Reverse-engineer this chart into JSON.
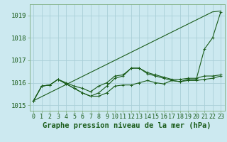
{
  "title": "Graphe pression niveau de la mer (hPa)",
  "xlabel_ticks": [
    0,
    1,
    2,
    3,
    4,
    5,
    6,
    7,
    8,
    9,
    10,
    11,
    12,
    13,
    14,
    15,
    16,
    17,
    18,
    19,
    20,
    21,
    22,
    23
  ],
  "ylim": [
    1014.75,
    1019.5
  ],
  "yticks": [
    1015,
    1016,
    1017,
    1018,
    1019
  ],
  "xlim": [
    -0.5,
    23.5
  ],
  "bg_color": "#cce9f0",
  "grid_color": "#aacfd8",
  "line_color": "#1a5c1a",
  "title_fontsize": 7.5,
  "tick_fontsize": 6,
  "series_main": [
    1015.2,
    1015.85,
    1015.9,
    1016.15,
    1015.95,
    1015.75,
    1015.55,
    1015.4,
    1015.55,
    1015.85,
    1016.2,
    1016.3,
    1016.65,
    1016.65,
    1016.4,
    1016.3,
    1016.2,
    1016.1,
    1016.05,
    1016.15,
    1016.15,
    1017.5,
    1018.0,
    1019.15
  ],
  "series_lower": [
    1015.2,
    1015.85,
    1015.9,
    1016.15,
    1015.95,
    1015.75,
    1015.55,
    1015.4,
    1015.4,
    1015.55,
    1015.85,
    1015.9,
    1015.9,
    1016.0,
    1016.1,
    1016.0,
    1015.95,
    1016.1,
    1016.05,
    1016.1,
    1016.1,
    1016.15,
    1016.2,
    1016.3
  ],
  "series_upper": [
    1015.2,
    1015.85,
    1015.9,
    1016.15,
    1016.0,
    1015.85,
    1015.75,
    1015.6,
    1015.85,
    1016.0,
    1016.3,
    1016.35,
    1016.65,
    1016.65,
    1016.45,
    1016.35,
    1016.25,
    1016.15,
    1016.15,
    1016.2,
    1016.2,
    1016.3,
    1016.3,
    1016.35
  ],
  "series_diagonal": [
    1015.2,
    1015.38,
    1015.56,
    1015.74,
    1015.92,
    1016.1,
    1016.28,
    1016.46,
    1016.64,
    1016.82,
    1017.0,
    1017.18,
    1017.36,
    1017.54,
    1017.72,
    1017.9,
    1018.08,
    1018.26,
    1018.44,
    1018.62,
    1018.8,
    1018.98,
    1019.16,
    1019.2
  ]
}
